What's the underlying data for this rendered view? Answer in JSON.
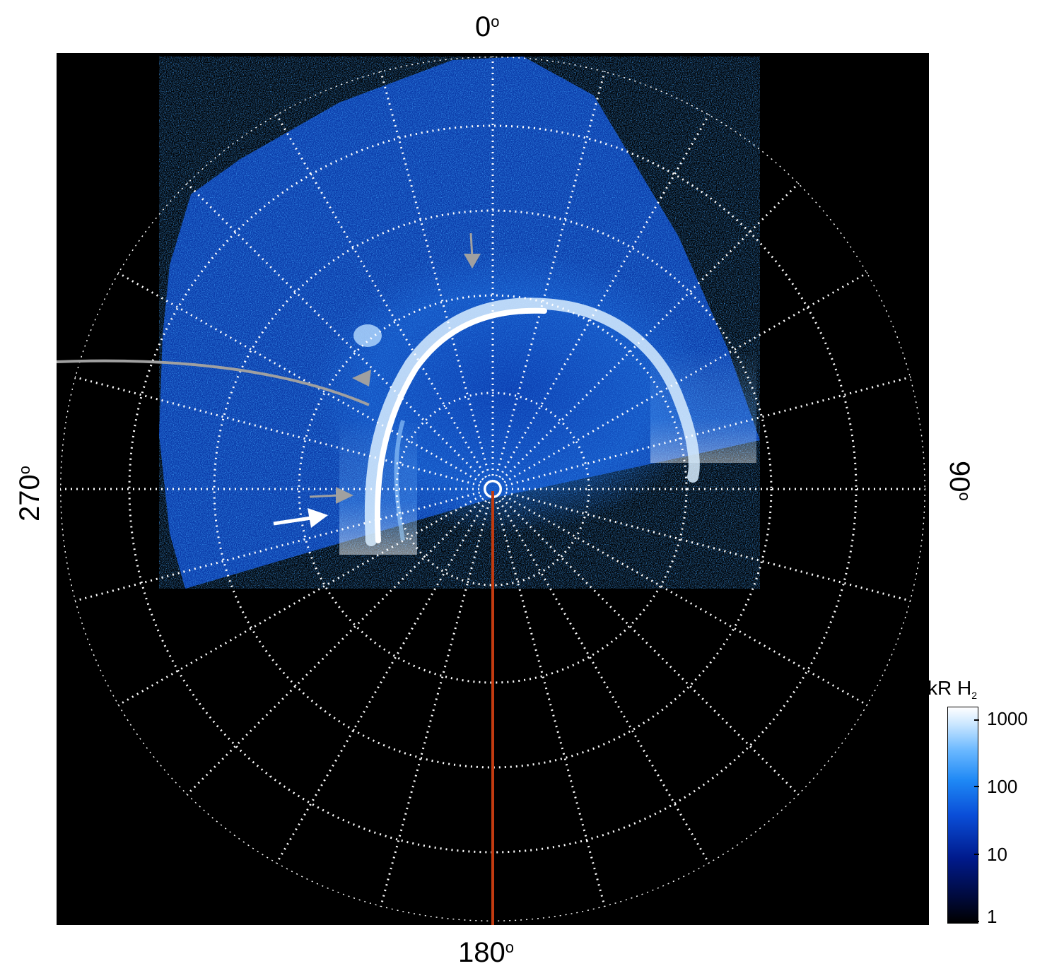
{
  "angle_labels": {
    "top": "0",
    "right": "90",
    "bottom": "180",
    "left": "270",
    "degree_symbol": "o"
  },
  "colorbar": {
    "title_main": "kR H",
    "title_sub": "2",
    "ticks": [
      "1000",
      "100",
      "10",
      "1"
    ],
    "scale": "log"
  },
  "colors": {
    "background_plot": "#000000",
    "grid": "#ffffff",
    "aurora_blue": "#1e88f5",
    "aurora_bright": "#ffffff",
    "meridian_line": "#c23b10",
    "annotation_gray": "#a0a0a0",
    "annotation_white": "#ffffff"
  },
  "grid": {
    "style": "dotted",
    "lat_circles": 6,
    "lon_spokes": 24
  }
}
